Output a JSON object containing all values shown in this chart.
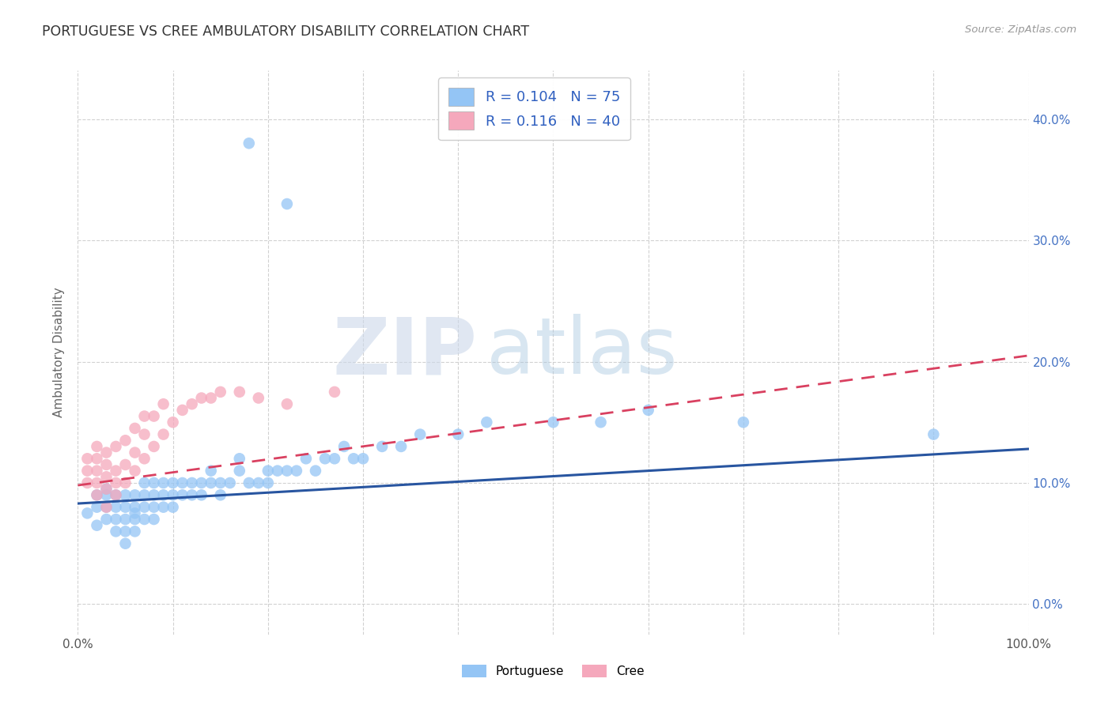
{
  "title": "PORTUGUESE VS CREE AMBULATORY DISABILITY CORRELATION CHART",
  "source": "Source: ZipAtlas.com",
  "ylabel": "Ambulatory Disability",
  "legend_portuguese": "Portuguese",
  "legend_cree": "Cree",
  "r_portuguese": 0.104,
  "n_portuguese": 75,
  "r_cree": 0.116,
  "n_cree": 40,
  "xlim": [
    0.0,
    1.0
  ],
  "ylim": [
    -0.025,
    0.44
  ],
  "ytick_positions": [
    0.0,
    0.1,
    0.2,
    0.3,
    0.4
  ],
  "ytick_labels": [
    "0.0%",
    "10.0%",
    "20.0%",
    "30.0%",
    "40.0%"
  ],
  "xtick_positions": [
    0.0,
    0.1,
    0.2,
    0.3,
    0.4,
    0.5,
    0.6,
    0.7,
    0.8,
    0.9,
    1.0
  ],
  "xtick_labels": [
    "0.0%",
    "",
    "",
    "",
    "",
    "",
    "",
    "",
    "",
    "",
    "100.0%"
  ],
  "background_color": "#ffffff",
  "grid_color": "#cccccc",
  "portuguese_color": "#94c5f5",
  "cree_color": "#f5a8bc",
  "portuguese_line_color": "#2855a0",
  "cree_line_color": "#d94060",
  "title_color": "#333333",
  "axis_label_color": "#666666",
  "tick_color": "#555555",
  "right_tick_color": "#4472c4",
  "legend_color": "#3060c0",
  "port_line_x0": 0.0,
  "port_line_y0": 0.083,
  "port_line_x1": 1.0,
  "port_line_y1": 0.128,
  "cree_line_x0": 0.0,
  "cree_line_y0": 0.098,
  "cree_line_x1": 1.0,
  "cree_line_y1": 0.205,
  "portuguese_scatter_x": [
    0.01,
    0.02,
    0.02,
    0.02,
    0.03,
    0.03,
    0.03,
    0.03,
    0.04,
    0.04,
    0.04,
    0.04,
    0.05,
    0.05,
    0.05,
    0.05,
    0.05,
    0.06,
    0.06,
    0.06,
    0.06,
    0.06,
    0.07,
    0.07,
    0.07,
    0.07,
    0.08,
    0.08,
    0.08,
    0.08,
    0.09,
    0.09,
    0.09,
    0.1,
    0.1,
    0.1,
    0.11,
    0.11,
    0.12,
    0.12,
    0.13,
    0.13,
    0.14,
    0.14,
    0.15,
    0.15,
    0.16,
    0.17,
    0.17,
    0.18,
    0.19,
    0.2,
    0.2,
    0.21,
    0.22,
    0.23,
    0.24,
    0.25,
    0.26,
    0.27,
    0.28,
    0.29,
    0.3,
    0.32,
    0.34,
    0.36,
    0.4,
    0.43,
    0.5,
    0.55,
    0.6,
    0.7,
    0.9,
    0.18,
    0.22
  ],
  "portuguese_scatter_y": [
    0.075,
    0.065,
    0.08,
    0.09,
    0.07,
    0.08,
    0.09,
    0.095,
    0.06,
    0.07,
    0.08,
    0.09,
    0.05,
    0.06,
    0.07,
    0.08,
    0.09,
    0.06,
    0.07,
    0.075,
    0.08,
    0.09,
    0.07,
    0.08,
    0.09,
    0.1,
    0.07,
    0.08,
    0.09,
    0.1,
    0.08,
    0.09,
    0.1,
    0.08,
    0.09,
    0.1,
    0.09,
    0.1,
    0.09,
    0.1,
    0.09,
    0.1,
    0.1,
    0.11,
    0.09,
    0.1,
    0.1,
    0.11,
    0.12,
    0.1,
    0.1,
    0.1,
    0.11,
    0.11,
    0.11,
    0.11,
    0.12,
    0.11,
    0.12,
    0.12,
    0.13,
    0.12,
    0.12,
    0.13,
    0.13,
    0.14,
    0.14,
    0.15,
    0.15,
    0.15,
    0.16,
    0.15,
    0.14,
    0.38,
    0.33
  ],
  "cree_scatter_x": [
    0.01,
    0.01,
    0.01,
    0.02,
    0.02,
    0.02,
    0.02,
    0.02,
    0.03,
    0.03,
    0.03,
    0.03,
    0.03,
    0.04,
    0.04,
    0.04,
    0.04,
    0.05,
    0.05,
    0.05,
    0.06,
    0.06,
    0.06,
    0.07,
    0.07,
    0.07,
    0.08,
    0.08,
    0.09,
    0.09,
    0.1,
    0.11,
    0.12,
    0.13,
    0.14,
    0.15,
    0.17,
    0.19,
    0.22,
    0.27
  ],
  "cree_scatter_y": [
    0.1,
    0.11,
    0.12,
    0.09,
    0.1,
    0.11,
    0.12,
    0.13,
    0.08,
    0.095,
    0.105,
    0.115,
    0.125,
    0.09,
    0.1,
    0.11,
    0.13,
    0.1,
    0.115,
    0.135,
    0.11,
    0.125,
    0.145,
    0.12,
    0.14,
    0.155,
    0.13,
    0.155,
    0.14,
    0.165,
    0.15,
    0.16,
    0.165,
    0.17,
    0.17,
    0.175,
    0.175,
    0.17,
    0.165,
    0.175
  ],
  "watermark_zip_color": "#c8d8ec",
  "watermark_atlas_color": "#c8d8ec"
}
